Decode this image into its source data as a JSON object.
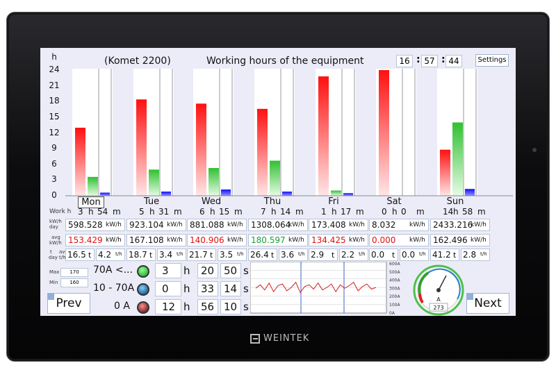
{
  "title": "(Komet 2200)",
  "subtitle": "Working hours of the equipment",
  "clock": {
    "h": "16",
    "m": "57",
    "s": "44"
  },
  "settings_label": "Settings",
  "y_axis": {
    "unit": "h",
    "ticks": [
      "24",
      "21",
      "18",
      "15",
      "12",
      "9",
      "6",
      "3",
      "0"
    ],
    "max": 24
  },
  "chart_data": {
    "type": "bar",
    "categories": [
      "Mon",
      "Tue",
      "Wed",
      "Thu",
      "Fri",
      "Sat",
      "Sun"
    ],
    "ylabel": "h",
    "ylim": [
      0,
      24
    ],
    "series": [
      {
        "color": "#ff2020",
        "values": [
          13.0,
          18.4,
          17.6,
          16.6,
          22.8,
          24.0,
          8.8
        ]
      },
      {
        "color": "#40d040",
        "values": [
          3.6,
          5.0,
          5.3,
          6.7,
          1.0,
          0,
          14.0
        ]
      },
      {
        "color": "#2020ff",
        "values": [
          0.6,
          0.8,
          1.2,
          0.8,
          0.5,
          0,
          1.3
        ]
      }
    ]
  },
  "rows": {
    "work_label": "Work h",
    "work": [
      [
        "3",
        "54"
      ],
      [
        "5",
        "31"
      ],
      [
        "6",
        "15"
      ],
      [
        "7",
        "14"
      ],
      [
        "1",
        "17"
      ],
      [
        "0",
        "0"
      ],
      [
        "14",
        "58"
      ]
    ],
    "work_units": {
      "h": "h",
      "m": "m"
    },
    "kwh_label": [
      "kW/h",
      "day"
    ],
    "kwh_day": [
      "598.528",
      "923.104",
      "881.088",
      "1308.064",
      "173.408",
      "8.032",
      "2433.216"
    ],
    "kwh_unit": "kW/h",
    "avg_label": [
      "avg",
      "kW/h"
    ],
    "avg": [
      "153.429",
      "167.108",
      "140.906",
      "180.597",
      "134.425",
      "0.000",
      "162.496"
    ],
    "avg_colors": [
      "red",
      "",
      "red",
      "green",
      "red",
      "red",
      ""
    ],
    "t_label": [
      "t",
      "day"
    ],
    "t_avg_label": [
      "avg",
      "t/h"
    ],
    "t_day": [
      "16.5",
      "18.7",
      "21.7",
      "26.4",
      "2.9",
      "0.0",
      "41.2"
    ],
    "t_unit": "t",
    "t_avg": [
      "4.2",
      "3.4",
      "3.5",
      "3.6",
      "2.2",
      "0.0",
      "2.8"
    ],
    "t_avg_unit": "t/h"
  },
  "bottom": {
    "max_label": "Max",
    "max_value": "170",
    "min_label": "Min",
    "min_value": "160",
    "states": [
      {
        "label": "70A <...",
        "h": "3",
        "m": "20",
        "s": "50"
      },
      {
        "label": "10 - 70A",
        "h": "0",
        "m": "33",
        "s": "14"
      },
      {
        "label": "0 A",
        "h": "12",
        "m": "56",
        "s": "10"
      }
    ],
    "units": {
      "h": "h",
      "m": "m",
      "s": "s"
    },
    "trend_axis": [
      "600A",
      "500A",
      "400A",
      "300A",
      "200A",
      "100A",
      "0A"
    ],
    "gauge_value": "273",
    "gauge_unit": "A",
    "prev": "Prev",
    "next": "Next"
  },
  "brand": "WEINTEK"
}
